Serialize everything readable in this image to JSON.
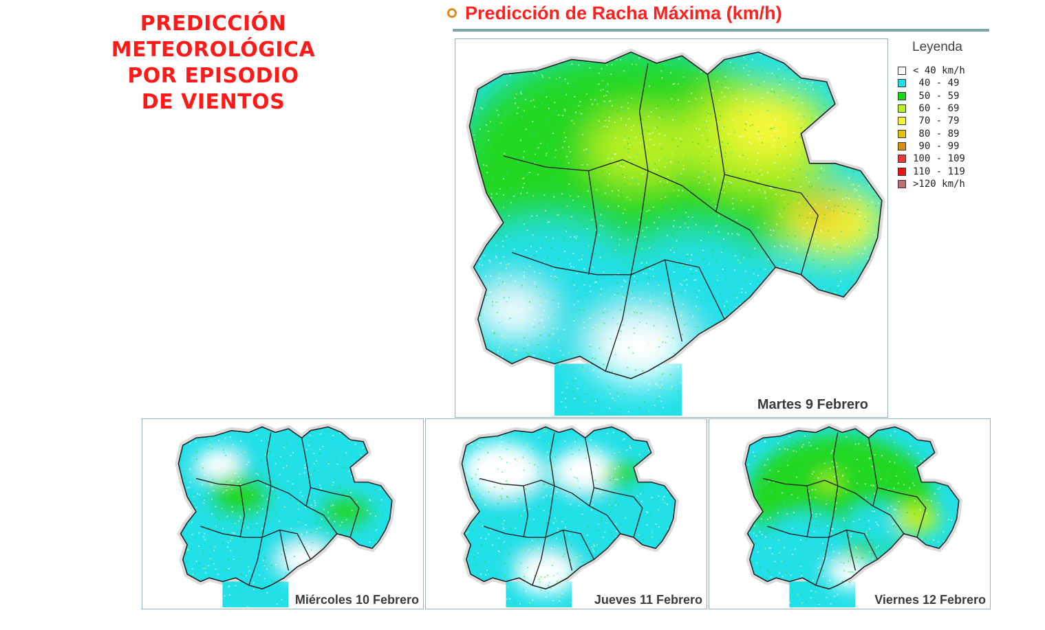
{
  "page_title": [
    "PREDICCIÓN",
    "METEOROLÓGICA",
    "POR EPISODIO",
    "DE VIENTOS"
  ],
  "map_title": "Predicción de Racha Máxima (km/h)",
  "legend": {
    "title": "Leyenda",
    "items": [
      {
        "label": "< 40 km/h",
        "color": "#ffffff"
      },
      {
        "label": " 40 - 49",
        "color": "#18e0e8"
      },
      {
        "label": " 50 - 59",
        "color": "#18d818"
      },
      {
        "label": " 60 - 69",
        "color": "#b8f020"
      },
      {
        "label": " 70 - 79",
        "color": "#f8f838"
      },
      {
        "label": " 80 - 89",
        "color": "#e8c010"
      },
      {
        "label": " 90 - 99",
        "color": "#d89010"
      },
      {
        "label": "100 - 109",
        "color": "#e83838"
      },
      {
        "label": "110 - 119",
        "color": "#f01010"
      },
      {
        "label": ">120 km/h",
        "color": "#c07070"
      }
    ]
  },
  "maps": [
    {
      "day": "Martes 9 Febrero",
      "dominant": "green-yellow"
    },
    {
      "day": "Miércoles 10 Febrero",
      "dominant": "cyan-green"
    },
    {
      "day": "Jueves 11 Febrero",
      "dominant": "white-cyan"
    },
    {
      "day": "Viernes 12 Febrero",
      "dominant": "green-cyan"
    }
  ]
}
